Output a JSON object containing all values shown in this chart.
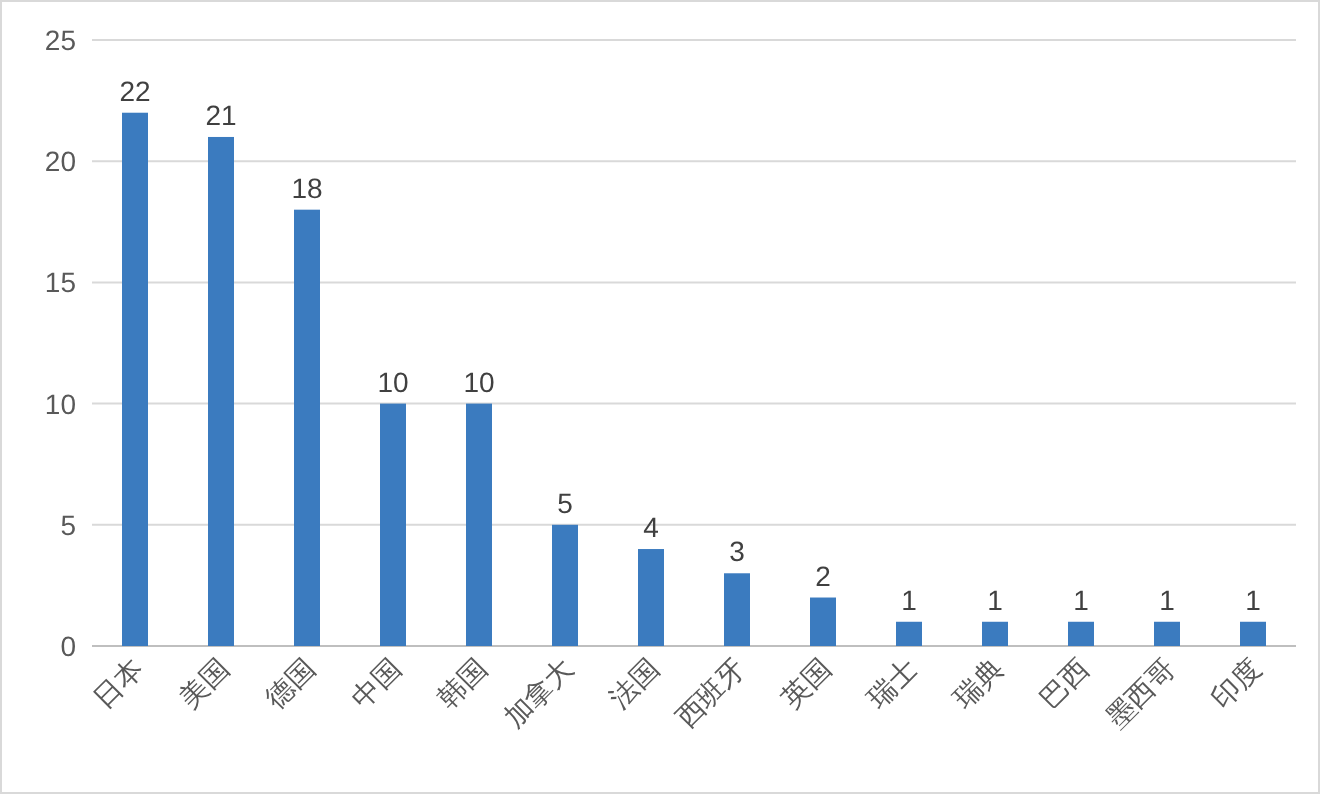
{
  "chart_data": {
    "type": "bar",
    "categories": [
      "日本",
      "美国",
      "德国",
      "中国",
      "韩国",
      "加拿大",
      "法国",
      "西班牙",
      "英国",
      "瑞士",
      "瑞典",
      "巴西",
      "墨西哥",
      "印度"
    ],
    "values": [
      22,
      21,
      18,
      10,
      10,
      5,
      4,
      3,
      2,
      1,
      1,
      1,
      1,
      1
    ],
    "color": "#3b7bbf",
    "ylim": [
      0,
      25
    ],
    "yticks": [
      0,
      5,
      10,
      15,
      20,
      25
    ],
    "grid": "y",
    "data_labels": true
  }
}
